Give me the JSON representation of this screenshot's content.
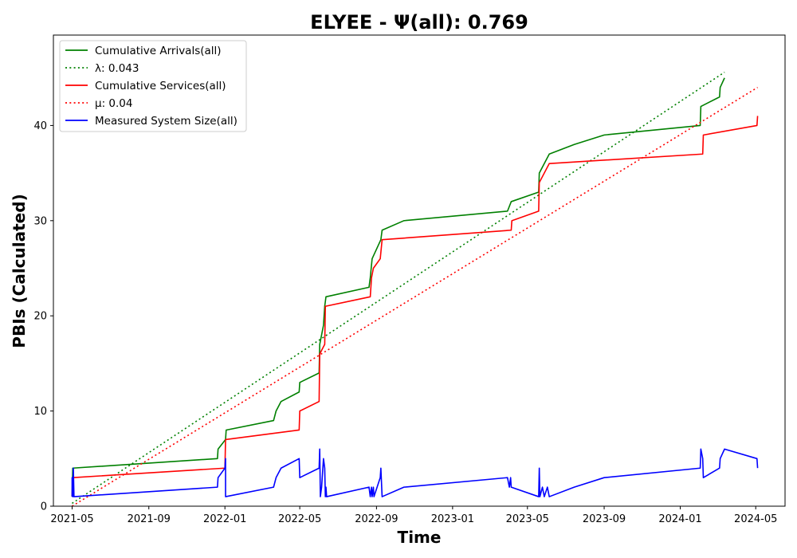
{
  "chart_data": {
    "type": "line",
    "title": "ELYEE -  Ψ(all): 0.769",
    "xlabel": "Time",
    "ylabel": "PBIs (Calculated)",
    "xlim": [
      "2021-04-01",
      "2024-06-17"
    ],
    "ylim": [
      0,
      49.5
    ],
    "x_ticks": [
      "2021-05",
      "2021-09",
      "2022-01",
      "2022-05",
      "2022-09",
      "2023-01",
      "2023-05",
      "2023-09",
      "2024-01",
      "2024-05"
    ],
    "y_ticks": [
      0,
      10,
      20,
      30,
      40
    ],
    "grid": false,
    "legend_position": "top-left",
    "series": [
      {
        "name": "Cumulative Arrivals(all)",
        "style": "solid",
        "color": "#008000",
        "points": [
          [
            "2021-05-01",
            1
          ],
          [
            "2021-05-02",
            4
          ],
          [
            "2021-12-20",
            5
          ],
          [
            "2021-12-21",
            6
          ],
          [
            "2022-01-02",
            7
          ],
          [
            "2022-01-03",
            8
          ],
          [
            "2022-03-20",
            9
          ],
          [
            "2022-03-24",
            10
          ],
          [
            "2022-04-01",
            11
          ],
          [
            "2022-04-30",
            12
          ],
          [
            "2022-05-01",
            13
          ],
          [
            "2022-06-01",
            14
          ],
          [
            "2022-06-02",
            17
          ],
          [
            "2022-06-05",
            18
          ],
          [
            "2022-06-08",
            19
          ],
          [
            "2022-06-09",
            20
          ],
          [
            "2022-06-10",
            21
          ],
          [
            "2022-06-12",
            22
          ],
          [
            "2022-08-20",
            23
          ],
          [
            "2022-08-22",
            24
          ],
          [
            "2022-08-25",
            26
          ],
          [
            "2022-09-08",
            28
          ],
          [
            "2022-09-10",
            29
          ],
          [
            "2022-10-15",
            30
          ],
          [
            "2023-03-30",
            31
          ],
          [
            "2023-04-05",
            32
          ],
          [
            "2023-05-19",
            33
          ],
          [
            "2023-05-20",
            35
          ],
          [
            "2023-06-05",
            37
          ],
          [
            "2023-07-15",
            38
          ],
          [
            "2023-09-01",
            39
          ],
          [
            "2024-02-02",
            40
          ],
          [
            "2024-02-03",
            42
          ],
          [
            "2024-03-04",
            43
          ],
          [
            "2024-03-05",
            44
          ],
          [
            "2024-03-12",
            45
          ]
        ]
      },
      {
        "name": "λ: 0.043",
        "style": "dotted",
        "color": "#008000",
        "points": [
          [
            "2021-05-01",
            0.3
          ],
          [
            "2024-03-12",
            45.6
          ]
        ]
      },
      {
        "name": "Cumulative Services(all)",
        "style": "solid",
        "color": "#ff0000",
        "points": [
          [
            "2021-05-01",
            1
          ],
          [
            "2021-05-02",
            3
          ],
          [
            "2022-01-01",
            4
          ],
          [
            "2022-01-02",
            7
          ],
          [
            "2022-04-30",
            8
          ],
          [
            "2022-05-01",
            10
          ],
          [
            "2022-06-01",
            11
          ],
          [
            "2022-06-02",
            16
          ],
          [
            "2022-06-10",
            17
          ],
          [
            "2022-06-11",
            21
          ],
          [
            "2022-08-22",
            22
          ],
          [
            "2022-08-24",
            24
          ],
          [
            "2022-08-27",
            25
          ],
          [
            "2022-09-07",
            26
          ],
          [
            "2022-09-10",
            28
          ],
          [
            "2023-04-05",
            29
          ],
          [
            "2023-04-06",
            30
          ],
          [
            "2023-05-19",
            31
          ],
          [
            "2023-05-20",
            34
          ],
          [
            "2023-06-05",
            36
          ],
          [
            "2024-02-06",
            37
          ],
          [
            "2024-02-07",
            39
          ],
          [
            "2024-05-03",
            40
          ],
          [
            "2024-05-04",
            41
          ]
        ]
      },
      {
        "name": "μ: 0.04",
        "style": "dotted",
        "color": "#ff0000",
        "points": [
          [
            "2021-05-01",
            0
          ],
          [
            "2024-05-04",
            44
          ]
        ]
      },
      {
        "name": "Measured System Size(all)",
        "style": "solid",
        "color": "#0000ff",
        "points": [
          [
            "2021-05-01",
            1
          ],
          [
            "2021-05-01",
            3
          ],
          [
            "2021-05-02",
            1
          ],
          [
            "2021-05-03",
            4
          ],
          [
            "2021-05-04",
            1
          ],
          [
            "2021-12-20",
            2
          ],
          [
            "2021-12-21",
            3
          ],
          [
            "2022-01-01",
            4
          ],
          [
            "2022-01-02",
            5
          ],
          [
            "2022-01-02",
            1
          ],
          [
            "2022-03-20",
            2
          ],
          [
            "2022-03-24",
            3
          ],
          [
            "2022-04-01",
            4
          ],
          [
            "2022-04-30",
            5
          ],
          [
            "2022-05-01",
            3
          ],
          [
            "2022-06-01",
            4
          ],
          [
            "2022-06-02",
            6
          ],
          [
            "2022-06-03",
            1
          ],
          [
            "2022-06-05",
            2
          ],
          [
            "2022-06-08",
            5
          ],
          [
            "2022-06-10",
            4
          ],
          [
            "2022-06-11",
            1
          ],
          [
            "2022-06-12",
            2
          ],
          [
            "2022-06-13",
            1
          ],
          [
            "2022-08-20",
            2
          ],
          [
            "2022-08-22",
            1
          ],
          [
            "2022-08-24",
            2
          ],
          [
            "2022-08-25",
            1
          ],
          [
            "2022-08-27",
            2
          ],
          [
            "2022-08-28",
            1
          ],
          [
            "2022-09-07",
            3
          ],
          [
            "2022-09-08",
            4
          ],
          [
            "2022-09-10",
            1
          ],
          [
            "2022-10-15",
            2
          ],
          [
            "2023-03-30",
            3
          ],
          [
            "2023-04-02",
            2
          ],
          [
            "2023-04-04",
            3
          ],
          [
            "2023-04-05",
            2
          ],
          [
            "2023-05-19",
            1
          ],
          [
            "2023-05-20",
            4
          ],
          [
            "2023-05-21",
            1
          ],
          [
            "2023-05-25",
            2
          ],
          [
            "2023-05-28",
            1
          ],
          [
            "2023-06-02",
            2
          ],
          [
            "2023-06-05",
            1
          ],
          [
            "2023-07-15",
            2
          ],
          [
            "2023-09-01",
            3
          ],
          [
            "2024-02-02",
            4
          ],
          [
            "2024-02-03",
            6
          ],
          [
            "2024-02-06",
            5
          ],
          [
            "2024-02-07",
            3
          ],
          [
            "2024-03-04",
            4
          ],
          [
            "2024-03-05",
            5
          ],
          [
            "2024-03-12",
            6
          ],
          [
            "2024-05-03",
            5
          ],
          [
            "2024-05-04",
            4
          ]
        ]
      }
    ]
  }
}
